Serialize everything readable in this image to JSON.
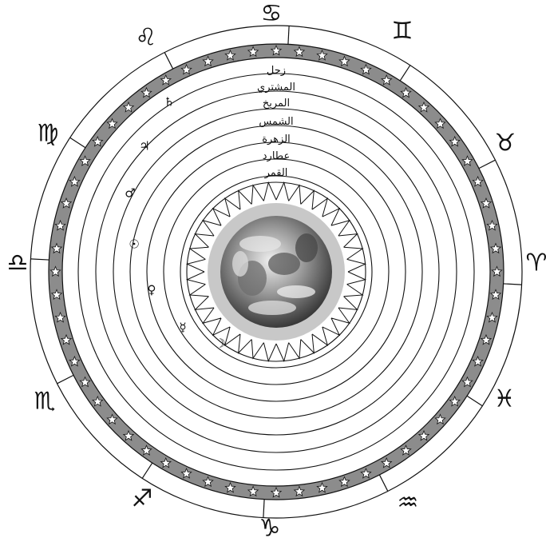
{
  "diagram": {
    "planet_labels": [
      "زحل",
      "المشتري",
      "المريخ",
      "الشمس",
      "الزهرة",
      "عطارد",
      "القمر"
    ],
    "planet_symbols": [
      {
        "name": "saturn-symbol",
        "glyph": "♄"
      },
      {
        "name": "jupiter-symbol",
        "glyph": "♃"
      },
      {
        "name": "mars-symbol",
        "glyph": "♂"
      },
      {
        "name": "sun-symbol",
        "glyph": "☉"
      },
      {
        "name": "venus-symbol",
        "glyph": "♀"
      },
      {
        "name": "mercury-symbol",
        "glyph": "☿"
      },
      {
        "name": "moon-symbol",
        "glyph": "☽"
      }
    ],
    "zodiac": [
      {
        "name": "cancer",
        "glyph": "♋"
      },
      {
        "name": "gemini",
        "glyph": "♊"
      },
      {
        "name": "taurus",
        "glyph": "♉"
      },
      {
        "name": "aries",
        "glyph": "♈"
      },
      {
        "name": "pisces",
        "glyph": "♓"
      },
      {
        "name": "aquarius",
        "glyph": "♒"
      },
      {
        "name": "capricorn",
        "glyph": "♑"
      },
      {
        "name": "sagittarius",
        "glyph": "♐"
      },
      {
        "name": "scorpio",
        "glyph": "♏"
      },
      {
        "name": "libra",
        "glyph": "♎"
      },
      {
        "name": "virgo",
        "glyph": "♍"
      },
      {
        "name": "leo",
        "glyph": "♌"
      }
    ],
    "colors": {
      "star_band": "#8c8c8c",
      "earth_halo": "#c8c8c8",
      "line": "#111111"
    }
  }
}
